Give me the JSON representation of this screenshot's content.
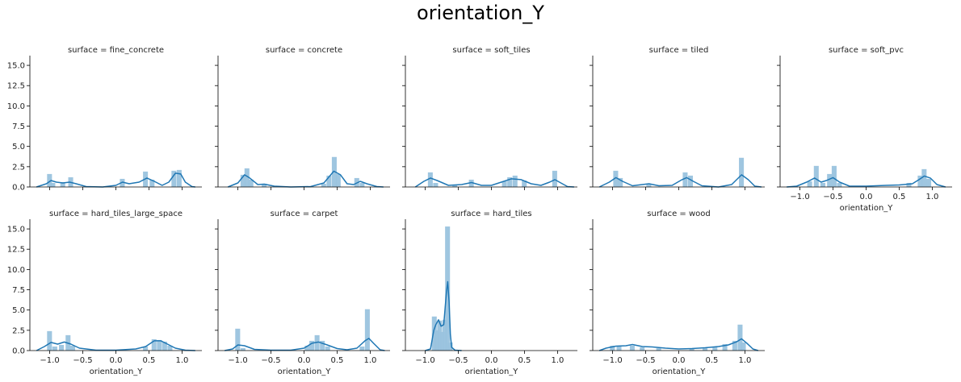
{
  "title": "orientation_Y",
  "xlabel": "orientation_Y",
  "colors": {
    "bar": "#9ac3de",
    "kde": "#1f77b4",
    "axis": "#000000"
  },
  "chart_data": {
    "type": "histogram-facet-grid",
    "title": "orientation_Y",
    "xlim": [
      -1.3,
      1.3
    ],
    "ylim": [
      0,
      16.2
    ],
    "xticks": [
      -1.0,
      -0.5,
      0.0,
      0.5,
      1.0
    ],
    "xtick_labels": [
      "−1.0",
      "−0.5",
      "0.0",
      "0.5",
      "1.0"
    ],
    "yticks": [
      0.0,
      2.5,
      5.0,
      7.5,
      10.0,
      12.5,
      15.0
    ],
    "ytick_labels": [
      "0.0",
      "2.5",
      "5.0",
      "7.5",
      "10.0",
      "12.5",
      "15.0"
    ],
    "panels": [
      {
        "title": "surface = fine_concrete",
        "bins": [
          [
            -1.0,
            1.6
          ],
          [
            -0.95,
            0.5
          ],
          [
            -0.8,
            0.6
          ],
          [
            -0.68,
            1.2
          ],
          [
            0.1,
            1.0
          ],
          [
            0.45,
            1.9
          ],
          [
            0.55,
            0.9
          ],
          [
            0.88,
            2.0
          ],
          [
            0.96,
            2.1
          ]
        ],
        "kde": [
          [
            -1.2,
            0
          ],
          [
            -1.05,
            0.4
          ],
          [
            -0.98,
            0.8
          ],
          [
            -0.9,
            0.6
          ],
          [
            -0.8,
            0.5
          ],
          [
            -0.7,
            0.6
          ],
          [
            -0.6,
            0.4
          ],
          [
            -0.45,
            0.05
          ],
          [
            -0.2,
            0
          ],
          [
            0.0,
            0.2
          ],
          [
            0.1,
            0.6
          ],
          [
            0.2,
            0.4
          ],
          [
            0.35,
            0.6
          ],
          [
            0.47,
            1.1
          ],
          [
            0.58,
            0.7
          ],
          [
            0.7,
            0.2
          ],
          [
            0.8,
            0.6
          ],
          [
            0.9,
            1.7
          ],
          [
            0.98,
            1.6
          ],
          [
            1.05,
            0.6
          ],
          [
            1.15,
            0.05
          ],
          [
            1.2,
            0
          ]
        ]
      },
      {
        "title": "surface = concrete",
        "bins": [
          [
            -0.92,
            1.5
          ],
          [
            -0.86,
            2.3
          ],
          [
            -0.8,
            0.9
          ],
          [
            -0.6,
            0.4
          ],
          [
            0.3,
            0.4
          ],
          [
            0.38,
            1.4
          ],
          [
            0.46,
            3.7
          ],
          [
            0.52,
            1.6
          ],
          [
            0.8,
            1.1
          ],
          [
            0.88,
            0.5
          ]
        ],
        "kde": [
          [
            -1.15,
            0
          ],
          [
            -1.0,
            0.5
          ],
          [
            -0.9,
            1.5
          ],
          [
            -0.82,
            1.1
          ],
          [
            -0.7,
            0.3
          ],
          [
            -0.6,
            0.35
          ],
          [
            -0.45,
            0.1
          ],
          [
            -0.2,
            0
          ],
          [
            0.1,
            0.05
          ],
          [
            0.3,
            0.5
          ],
          [
            0.45,
            1.95
          ],
          [
            0.55,
            1.5
          ],
          [
            0.65,
            0.4
          ],
          [
            0.75,
            0.3
          ],
          [
            0.85,
            0.7
          ],
          [
            0.95,
            0.4
          ],
          [
            1.1,
            0.05
          ],
          [
            1.2,
            0
          ]
        ]
      },
      {
        "title": "surface = soft_tiles",
        "bins": [
          [
            -0.92,
            1.8
          ],
          [
            -0.84,
            0.5
          ],
          [
            -0.55,
            0.3
          ],
          [
            -0.3,
            0.9
          ],
          [
            0.2,
            0.7
          ],
          [
            0.28,
            1.2
          ],
          [
            0.36,
            1.4
          ],
          [
            0.5,
            0.8
          ],
          [
            0.96,
            2.0
          ]
        ],
        "kde": [
          [
            -1.15,
            0
          ],
          [
            -1.02,
            0.7
          ],
          [
            -0.92,
            1.1
          ],
          [
            -0.82,
            0.8
          ],
          [
            -0.65,
            0.2
          ],
          [
            -0.45,
            0.3
          ],
          [
            -0.3,
            0.55
          ],
          [
            -0.15,
            0.2
          ],
          [
            0.0,
            0.2
          ],
          [
            0.15,
            0.6
          ],
          [
            0.3,
            1.0
          ],
          [
            0.45,
            0.9
          ],
          [
            0.6,
            0.4
          ],
          [
            0.75,
            0.2
          ],
          [
            0.88,
            0.6
          ],
          [
            0.96,
            0.9
          ],
          [
            1.05,
            0.5
          ],
          [
            1.15,
            0.05
          ],
          [
            1.25,
            0
          ]
        ]
      },
      {
        "title": "surface = tiled",
        "bins": [
          [
            -0.95,
            2.0
          ],
          [
            -0.88,
            1.1
          ],
          [
            -0.45,
            0.3
          ],
          [
            0.1,
            1.8
          ],
          [
            0.18,
            1.4
          ],
          [
            0.95,
            3.6
          ]
        ],
        "kde": [
          [
            -1.2,
            0
          ],
          [
            -1.05,
            0.6
          ],
          [
            -0.95,
            1.15
          ],
          [
            -0.85,
            0.7
          ],
          [
            -0.7,
            0.15
          ],
          [
            -0.55,
            0.3
          ],
          [
            -0.45,
            0.4
          ],
          [
            -0.3,
            0.15
          ],
          [
            -0.1,
            0.2
          ],
          [
            0.05,
            0.9
          ],
          [
            0.12,
            1.15
          ],
          [
            0.22,
            0.7
          ],
          [
            0.35,
            0.15
          ],
          [
            0.6,
            0
          ],
          [
            0.8,
            0.3
          ],
          [
            0.95,
            1.5
          ],
          [
            1.05,
            0.9
          ],
          [
            1.15,
            0.1
          ],
          [
            1.25,
            0
          ]
        ]
      },
      {
        "title": "surface = soft_pvc",
        "bins": [
          [
            -0.85,
            0.7
          ],
          [
            -0.75,
            2.6
          ],
          [
            -0.65,
            0.5
          ],
          [
            -0.55,
            1.6
          ],
          [
            -0.48,
            2.6
          ],
          [
            -0.4,
            0.5
          ],
          [
            0.65,
            0.5
          ],
          [
            0.82,
            1.4
          ],
          [
            0.88,
            2.2
          ],
          [
            0.95,
            1.0
          ]
        ],
        "kde": [
          [
            -1.2,
            0
          ],
          [
            -1.05,
            0.1
          ],
          [
            -0.9,
            0.6
          ],
          [
            -0.78,
            1.1
          ],
          [
            -0.68,
            0.6
          ],
          [
            -0.6,
            0.8
          ],
          [
            -0.5,
            1.15
          ],
          [
            -0.4,
            0.6
          ],
          [
            -0.25,
            0.1
          ],
          [
            0.0,
            0.1
          ],
          [
            0.3,
            0.2
          ],
          [
            0.5,
            0.25
          ],
          [
            0.7,
            0.4
          ],
          [
            0.8,
            0.9
          ],
          [
            0.88,
            1.35
          ],
          [
            0.97,
            1.1
          ],
          [
            1.07,
            0.3
          ],
          [
            1.2,
            0
          ]
        ]
      },
      {
        "title": "surface = hard_tiles_large_space",
        "bins": [
          [
            -1.0,
            2.4
          ],
          [
            -0.92,
            0.5
          ],
          [
            -0.82,
            0.7
          ],
          [
            -0.72,
            1.9
          ],
          [
            -0.65,
            0.6
          ],
          [
            0.45,
            0.5
          ],
          [
            0.58,
            1.4
          ],
          [
            0.66,
            1.3
          ],
          [
            0.74,
            1.1
          ],
          [
            0.82,
            0.6
          ]
        ],
        "kde": [
          [
            -1.2,
            0
          ],
          [
            -1.08,
            0.5
          ],
          [
            -0.98,
            1.0
          ],
          [
            -0.88,
            0.8
          ],
          [
            -0.78,
            1.05
          ],
          [
            -0.68,
            0.8
          ],
          [
            -0.55,
            0.3
          ],
          [
            -0.3,
            0.05
          ],
          [
            0.0,
            0.05
          ],
          [
            0.3,
            0.2
          ],
          [
            0.45,
            0.5
          ],
          [
            0.58,
            1.2
          ],
          [
            0.68,
            1.2
          ],
          [
            0.78,
            0.8
          ],
          [
            0.9,
            0.3
          ],
          [
            1.05,
            0.05
          ],
          [
            1.2,
            0
          ]
        ]
      },
      {
        "title": "surface = carpet",
        "bins": [
          [
            -1.0,
            2.7
          ],
          [
            -0.92,
            0.3
          ],
          [
            0.05,
            0.6
          ],
          [
            0.12,
            1.2
          ],
          [
            0.2,
            1.9
          ],
          [
            0.28,
            1.2
          ],
          [
            0.36,
            0.5
          ],
          [
            0.88,
            0.5
          ],
          [
            0.96,
            5.1
          ]
        ],
        "kde": [
          [
            -1.2,
            0
          ],
          [
            -1.08,
            0.2
          ],
          [
            -1.0,
            0.7
          ],
          [
            -0.9,
            0.6
          ],
          [
            -0.75,
            0.15
          ],
          [
            -0.5,
            0.05
          ],
          [
            -0.2,
            0.05
          ],
          [
            0.0,
            0.3
          ],
          [
            0.12,
            0.9
          ],
          [
            0.22,
            1.05
          ],
          [
            0.35,
            0.7
          ],
          [
            0.5,
            0.25
          ],
          [
            0.65,
            0.1
          ],
          [
            0.8,
            0.3
          ],
          [
            0.92,
            1.2
          ],
          [
            0.98,
            1.5
          ],
          [
            1.05,
            0.9
          ],
          [
            1.15,
            0.1
          ],
          [
            1.22,
            0
          ]
        ]
      },
      {
        "title": "surface = hard_tiles",
        "bins": [
          [
            -0.86,
            4.2
          ],
          [
            -0.82,
            2.5
          ],
          [
            -0.78,
            3.7
          ],
          [
            -0.74,
            2.3
          ],
          [
            -0.7,
            3.8
          ],
          [
            -0.66,
            15.3
          ],
          [
            -0.62,
            1.0
          ]
        ],
        "kde": [
          [
            -1.0,
            0
          ],
          [
            -0.92,
            0.2
          ],
          [
            -0.87,
            2.5
          ],
          [
            -0.84,
            3.2
          ],
          [
            -0.8,
            3.8
          ],
          [
            -0.76,
            3.0
          ],
          [
            -0.72,
            3.2
          ],
          [
            -0.68,
            7.2
          ],
          [
            -0.66,
            8.5
          ],
          [
            -0.64,
            6.0
          ],
          [
            -0.62,
            2.0
          ],
          [
            -0.6,
            0.4
          ],
          [
            -0.55,
            0.05
          ],
          [
            -0.45,
            0
          ]
        ]
      },
      {
        "title": "surface = wood",
        "bins": [
          [
            -1.0,
            0.6
          ],
          [
            -0.9,
            0.5
          ],
          [
            -0.7,
            0.6
          ],
          [
            -0.55,
            0.4
          ],
          [
            -0.3,
            0.3
          ],
          [
            0.2,
            0.3
          ],
          [
            0.4,
            0.4
          ],
          [
            0.55,
            0.5
          ],
          [
            0.7,
            0.8
          ],
          [
            0.85,
            1.2
          ],
          [
            0.93,
            3.2
          ],
          [
            0.98,
            1.0
          ]
        ],
        "kde": [
          [
            -1.2,
            0
          ],
          [
            -1.1,
            0.3
          ],
          [
            -0.95,
            0.55
          ],
          [
            -0.8,
            0.6
          ],
          [
            -0.7,
            0.75
          ],
          [
            -0.55,
            0.5
          ],
          [
            -0.4,
            0.45
          ],
          [
            -0.2,
            0.3
          ],
          [
            0.0,
            0.2
          ],
          [
            0.2,
            0.25
          ],
          [
            0.4,
            0.35
          ],
          [
            0.6,
            0.5
          ],
          [
            0.75,
            0.7
          ],
          [
            0.88,
            1.1
          ],
          [
            0.95,
            1.45
          ],
          [
            1.03,
            0.9
          ],
          [
            1.12,
            0.2
          ],
          [
            1.2,
            0
          ]
        ]
      }
    ]
  }
}
